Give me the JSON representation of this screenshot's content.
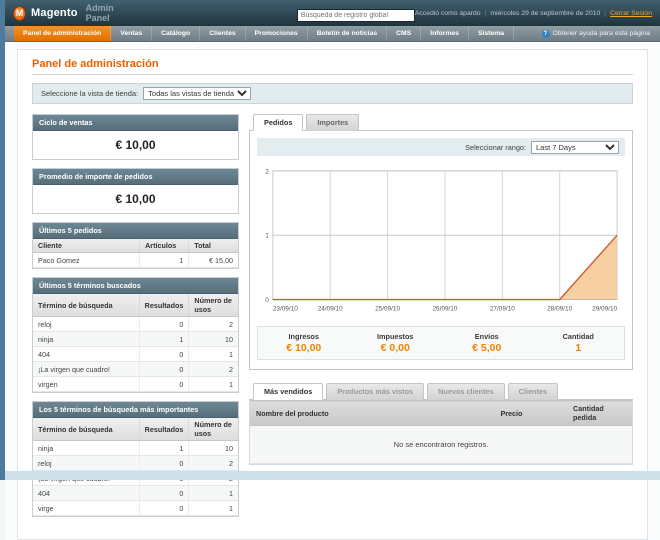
{
  "header": {
    "logo_glyph": "M",
    "logo_name": "Magento",
    "logo_sub": "Admin Panel",
    "search_placeholder": "Búsqueda de registro global",
    "logged_in_as": "Accedió como apardo",
    "separator": "|",
    "date": "miércoles 29 de septiembre de 2010",
    "logout_label": "Cerrar Sesión"
  },
  "nav": {
    "items": [
      {
        "label": "Panel de administración",
        "active": true
      },
      {
        "label": "Ventas",
        "active": false
      },
      {
        "label": "Catálogo",
        "active": false
      },
      {
        "label": "Clientes",
        "active": false
      },
      {
        "label": "Promociones",
        "active": false
      },
      {
        "label": "Boletín de noticias",
        "active": false
      },
      {
        "label": "CMS",
        "active": false
      },
      {
        "label": "Informes",
        "active": false
      },
      {
        "label": "Sistema",
        "active": false
      }
    ],
    "help_icon_glyph": "?",
    "help_label": "Obtener ayuda para esta página"
  },
  "page": {
    "title": "Panel de administración"
  },
  "store_switcher": {
    "label": "Seleccione la vista de tienda:",
    "value": "Todas las vistas de tienda"
  },
  "sidebar": {
    "sales_box": {
      "title": "Ciclo de ventas",
      "value": "€ 10,00"
    },
    "average_box": {
      "title": "Promedio de importe de pedidos",
      "value": "€ 10,00"
    },
    "last_orders": {
      "title": "Últimos 5 pedidos",
      "columns": [
        "Cliente",
        "Artículos",
        "Total"
      ],
      "rows": [
        [
          "Paco Gomez",
          "1",
          "€ 15,00"
        ]
      ]
    },
    "last_terms": {
      "title": "Últimos 5 términos buscados",
      "columns": [
        "Término de búsqueda",
        "Resultados",
        "Número de usos"
      ],
      "rows": [
        [
          "reloj",
          "0",
          "2"
        ],
        [
          "ninja",
          "1",
          "10"
        ],
        [
          "404",
          "0",
          "1"
        ],
        [
          "¡La virgen que cuadro!",
          "0",
          "2"
        ],
        [
          "virgen",
          "0",
          "1"
        ]
      ]
    },
    "top_terms": {
      "title": "Los 5 términos de búsqueda más importantes",
      "columns": [
        "Término de búsqueda",
        "Resultados",
        "Número de usos"
      ],
      "rows": [
        [
          "ninja",
          "1",
          "10"
        ],
        [
          "reloj",
          "0",
          "2"
        ],
        [
          "¡La virgen que cuadro!",
          "0",
          "2"
        ],
        [
          "404",
          "0",
          "1"
        ],
        [
          "virge",
          "0",
          "1"
        ]
      ]
    }
  },
  "main": {
    "chart_tabs": [
      {
        "label": "Pedidos",
        "active": true
      },
      {
        "label": "Importes",
        "active": false
      }
    ],
    "range": {
      "label": "Seleccionar rango:",
      "value": "Last 7 Days"
    },
    "stats": [
      {
        "label": "Ingresos",
        "value": "€ 10,00"
      },
      {
        "label": "Impuestos",
        "value": "€ 0,00"
      },
      {
        "label": "Envíos",
        "value": "€ 5,00"
      },
      {
        "label": "Cantidad",
        "value": "1"
      }
    ],
    "bottom_tabs": [
      {
        "label": "Más vendidos",
        "active": true
      },
      {
        "label": "Productos más vistos",
        "active": false
      },
      {
        "label": "Nuevos clientes",
        "active": false
      },
      {
        "label": "Clientes",
        "active": false
      }
    ],
    "products_table": {
      "columns": [
        "Nombre del producto",
        "Precio",
        "Cantidad pedida"
      ],
      "empty_text": "No se encontraron registros."
    }
  },
  "chart_data": {
    "type": "area",
    "title": "Pedidos - Last 7 Days",
    "x": [
      "23/09/10",
      "24/09/10",
      "25/09/10",
      "26/09/10",
      "27/09/10",
      "28/09/10",
      "29/09/10"
    ],
    "series": [
      {
        "name": "Pedidos",
        "values": [
          0,
          0,
          0,
          0,
          0,
          0,
          1
        ]
      }
    ],
    "xlabel": "",
    "ylabel": "",
    "ylim": [
      0,
      2
    ],
    "yticks": [
      0,
      1,
      2
    ],
    "grid": true,
    "legend": false,
    "line_color": "#cf5b2e",
    "fill_color": "#f6cfa2"
  },
  "colors": {
    "accent_orange": "#f18200",
    "title_orange": "#eb5e00",
    "header_bg": "#2c4652",
    "nav_bg": "#75828b",
    "box_header_bg": "#617e8c",
    "chart_line": "#cf5b2e",
    "chart_fill": "#f6cfa2"
  }
}
